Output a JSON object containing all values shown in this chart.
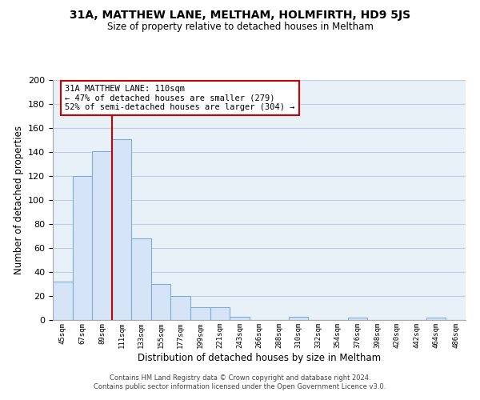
{
  "title": "31A, MATTHEW LANE, MELTHAM, HOLMFIRTH, HD9 5JS",
  "subtitle": "Size of property relative to detached houses in Meltham",
  "xlabel": "Distribution of detached houses by size in Meltham",
  "ylabel": "Number of detached properties",
  "bar_values": [
    32,
    120,
    141,
    151,
    68,
    30,
    20,
    11,
    11,
    3,
    0,
    0,
    3,
    0,
    0,
    2,
    0,
    0,
    0,
    2,
    0
  ],
  "bar_labels": [
    "45sqm",
    "67sqm",
    "89sqm",
    "111sqm",
    "133sqm",
    "155sqm",
    "177sqm",
    "199sqm",
    "221sqm",
    "243sqm",
    "266sqm",
    "288sqm",
    "310sqm",
    "332sqm",
    "354sqm",
    "376sqm",
    "398sqm",
    "420sqm",
    "442sqm",
    "464sqm",
    "486sqm"
  ],
  "bar_color": "#d6e4f7",
  "bar_edge_color": "#7bafd4",
  "vline_x": 2.5,
  "vline_color": "#cc0000",
  "annotation_text": "31A MATTHEW LANE: 110sqm\n← 47% of detached houses are smaller (279)\n52% of semi-detached houses are larger (304) →",
  "annotation_box_color": "#ffffff",
  "annotation_box_edge": "#cc0000",
  "ylim": [
    0,
    200
  ],
  "yticks": [
    0,
    20,
    40,
    60,
    80,
    100,
    120,
    140,
    160,
    180,
    200
  ],
  "footer_line1": "Contains HM Land Registry data © Crown copyright and database right 2024.",
  "footer_line2": "Contains public sector information licensed under the Open Government Licence v3.0.",
  "bg_color": "#ffffff",
  "plot_bg_color": "#e8f0f8",
  "grid_color": "#c0cfe0"
}
